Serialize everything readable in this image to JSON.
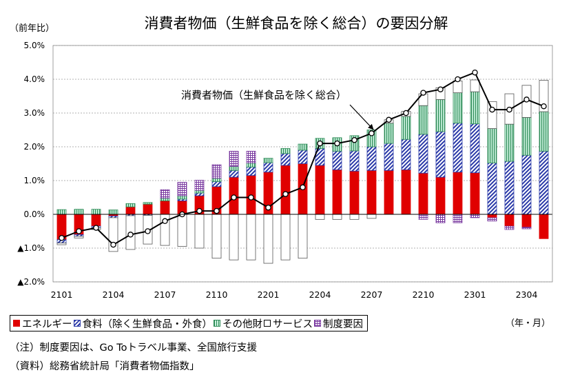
{
  "title": "消費者物価（生鮮食品を除く総合）の要因分解",
  "y_unit_label": "（前年比）",
  "x_unit_label": "（年・月）",
  "line_label": "消費者物価（生鮮食品を除く総合）",
  "legend": {
    "energy": "エネルギー",
    "food": "食料（除く生鮮食品・外食）",
    "other": "その他財",
    "service": "サービス",
    "institutional": "制度要因"
  },
  "notes": {
    "note1": "（注）制度要因は、Go Toトラベル事業、全国旅行支援",
    "note2": "（資料）総務省統計局「消費者物価指数」"
  },
  "colors": {
    "energy": "#e00000",
    "food": "#2b3aa8",
    "other": "#2e8b57",
    "other_fill": "#c8f0dc",
    "service": "#ffffff",
    "institutional": "#7a3aa0",
    "line": "#000000",
    "gridline": "#999999"
  },
  "chart_data": {
    "type": "bar",
    "stacked": true,
    "title": "消費者物価（生鮮食品を除く総合）の要因分解",
    "ylabel": "（前年比）",
    "xlabel": "（年・月）",
    "ylim": [
      -2.0,
      5.0
    ],
    "y_ticks": [
      -2.0,
      -1.0,
      0.0,
      1.0,
      2.0,
      3.0,
      4.0,
      5.0
    ],
    "y_tick_labels": [
      "▲2.0%",
      "▲1.0%",
      "0.0%",
      "1.0%",
      "2.0%",
      "3.0%",
      "4.0%",
      "5.0%"
    ],
    "x_tick_labels": [
      "2101",
      "2104",
      "2107",
      "2110",
      "2201",
      "2204",
      "2207",
      "2210",
      "2301",
      "2304"
    ],
    "grid": "horizontal",
    "legend_position": "bottom",
    "categories": [
      "2101",
      "2102",
      "2103",
      "2104",
      "2105",
      "2106",
      "2107",
      "2108",
      "2109",
      "2110",
      "2111",
      "2112",
      "2201",
      "2202",
      "2203",
      "2204",
      "2205",
      "2206",
      "2207",
      "2208",
      "2209",
      "2210",
      "2211",
      "2212",
      "2301",
      "2302",
      "2303",
      "2304",
      "2305"
    ],
    "series": [
      {
        "name": "エネルギー",
        "values": [
          -0.75,
          -0.6,
          -0.35,
          -0.05,
          0.22,
          0.3,
          0.4,
          0.4,
          0.55,
          0.82,
          1.1,
          1.15,
          1.25,
          1.45,
          1.5,
          1.45,
          1.32,
          1.28,
          1.3,
          1.3,
          1.32,
          1.22,
          1.1,
          1.25,
          1.23,
          -0.1,
          -0.35,
          -0.38,
          -0.72
        ]
      },
      {
        "name": "食料（除く生鮮食品・外食）",
        "values": [
          -0.1,
          -0.05,
          -0.05,
          -0.05,
          -0.04,
          -0.03,
          0.0,
          0.05,
          0.08,
          0.15,
          0.2,
          0.25,
          0.28,
          0.35,
          0.4,
          0.5,
          0.55,
          0.6,
          0.7,
          0.8,
          0.9,
          1.15,
          1.35,
          1.45,
          1.45,
          1.52,
          1.57,
          1.75,
          1.87
        ]
      },
      {
        "name": "その他財",
        "values": [
          0.14,
          0.15,
          0.15,
          0.13,
          0.1,
          0.05,
          0.08,
          0.1,
          0.08,
          0.1,
          0.12,
          0.12,
          0.13,
          0.15,
          0.18,
          0.3,
          0.4,
          0.45,
          0.5,
          0.6,
          0.68,
          0.85,
          0.95,
          0.9,
          0.95,
          1.02,
          1.1,
          1.12,
          1.17
        ]
      },
      {
        "name": "サービス",
        "values": [
          -0.05,
          -0.05,
          -0.05,
          -1.0,
          -1.0,
          -0.85,
          -0.92,
          -0.95,
          -1.0,
          -1.3,
          -1.35,
          -1.35,
          -1.45,
          -1.35,
          -1.3,
          -0.15,
          -0.15,
          -0.15,
          -0.12,
          0.1,
          0.15,
          0.35,
          0.35,
          0.35,
          0.35,
          0.8,
          0.9,
          0.95,
          0.93
        ]
      },
      {
        "name": "制度要因",
        "values": [
          0.0,
          0.0,
          0.0,
          0.0,
          0.0,
          0.0,
          0.25,
          0.4,
          0.3,
          0.4,
          0.45,
          0.35,
          0.0,
          0.0,
          0.0,
          0.0,
          0.0,
          0.0,
          0.0,
          0.0,
          0.0,
          -0.15,
          -0.25,
          -0.25,
          -0.1,
          -0.1,
          -0.1,
          -0.05,
          0.0
        ]
      },
      {
        "name": "消費者物価（生鮮食品を除く総合）",
        "type": "line",
        "values": [
          -0.7,
          -0.5,
          -0.4,
          -0.9,
          -0.6,
          -0.5,
          -0.2,
          0.0,
          0.1,
          0.1,
          0.5,
          0.5,
          0.2,
          0.6,
          0.8,
          2.1,
          2.1,
          2.2,
          2.4,
          2.8,
          3.0,
          3.6,
          3.7,
          4.0,
          4.2,
          3.1,
          3.1,
          3.4,
          3.2
        ]
      }
    ]
  }
}
